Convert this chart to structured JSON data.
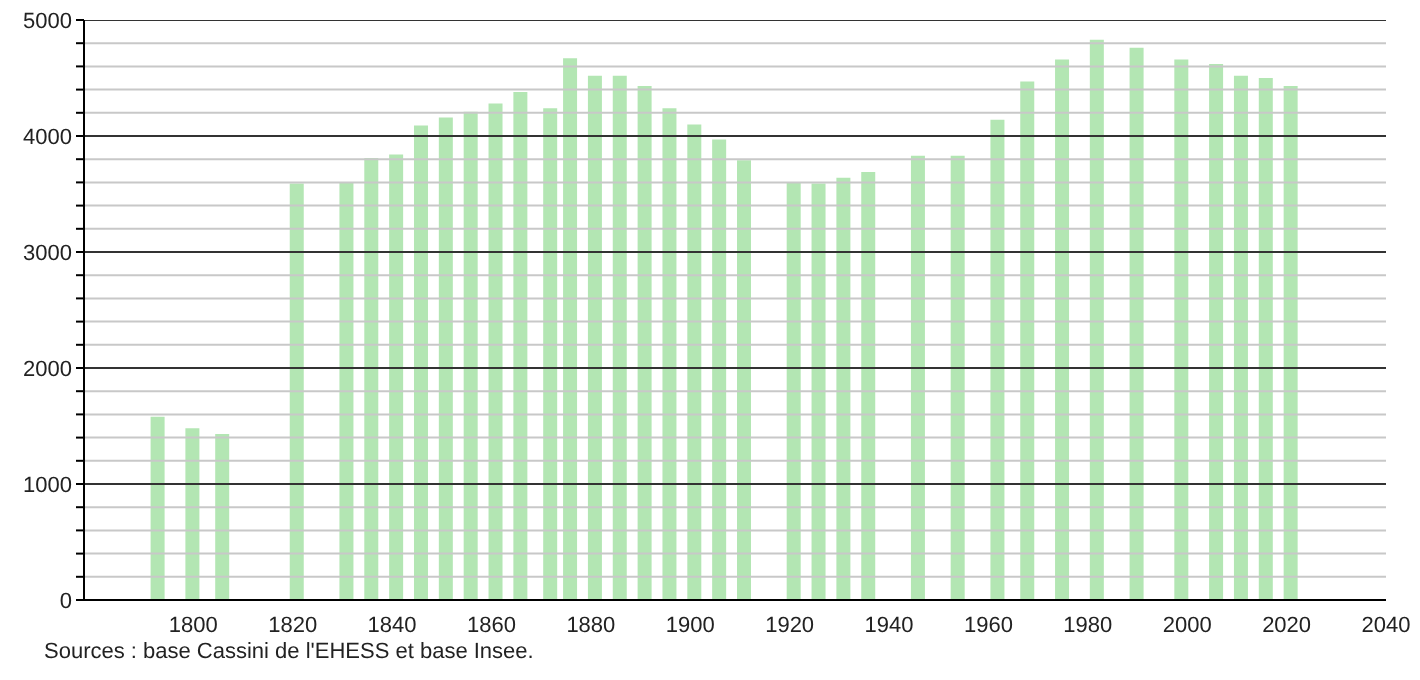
{
  "chart_data": {
    "type": "bar",
    "x": [
      1793,
      1800,
      1806,
      1821,
      1831,
      1836,
      1841,
      1846,
      1851,
      1856,
      1861,
      1866,
      1872,
      1876,
      1881,
      1886,
      1891,
      1896,
      1901,
      1906,
      1911,
      1921,
      1926,
      1931,
      1936,
      1946,
      1954,
      1962,
      1968,
      1975,
      1982,
      1990,
      1999,
      2006,
      2011,
      2016,
      2021
    ],
    "values": [
      1580,
      1480,
      1430,
      3590,
      3600,
      3810,
      3840,
      4090,
      4160,
      4210,
      4280,
      4380,
      4240,
      4670,
      4520,
      4520,
      4430,
      4240,
      4100,
      3970,
      3790,
      3600,
      3590,
      3640,
      3690,
      3830,
      3830,
      4140,
      4470,
      4660,
      4830,
      4760,
      4660,
      4620,
      4520,
      4500,
      4430
    ],
    "color": "#b3e6b3",
    "xlim": [
      1778,
      2040
    ],
    "xticks": [
      1800,
      1820,
      1840,
      1860,
      1880,
      1900,
      1920,
      1940,
      1960,
      1980,
      2000,
      2020,
      2040
    ],
    "ylim": [
      0,
      5000
    ],
    "yticks": [
      0,
      {
        "value": 200,
        "label": null
      },
      {
        "value": 400,
        "label": null
      },
      {
        "value": 600,
        "label": null
      },
      {
        "value": 800,
        "label": null
      },
      1000,
      {
        "value": 1200,
        "label": null
      },
      {
        "value": 1400,
        "label": null
      },
      {
        "value": 1600,
        "label": null
      },
      {
        "value": 1800,
        "label": null
      },
      2000,
      {
        "value": 2200,
        "label": null
      },
      {
        "value": 2400,
        "label": null
      },
      {
        "value": 2600,
        "label": null
      },
      {
        "value": 2800,
        "label": null
      },
      3000,
      {
        "value": 3200,
        "label": null
      },
      {
        "value": 3400,
        "label": null
      },
      {
        "value": 3600,
        "label": null
      },
      {
        "value": 3800,
        "label": null
      },
      4000,
      {
        "value": 4200,
        "label": null
      },
      {
        "value": 4400,
        "label": null
      },
      {
        "value": 4600,
        "label": null
      },
      {
        "value": 4800,
        "label": null
      },
      5000
    ],
    "grid": "y",
    "annotations": [
      "Sources : base Cassini de l'EHESS et base Insee."
    ]
  }
}
